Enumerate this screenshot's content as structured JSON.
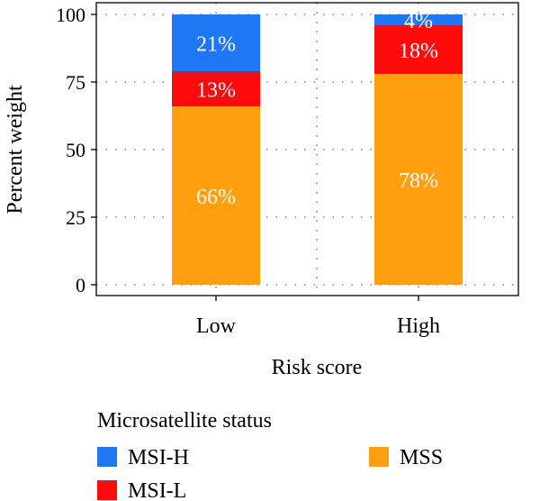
{
  "chart_data": {
    "type": "bar",
    "stacked": true,
    "categories": [
      "Low",
      "High"
    ],
    "xlabel": "Risk score",
    "ylabel": "Percent weight",
    "ylim": [
      0,
      100
    ],
    "yticks": [
      "0",
      "25",
      "50",
      "75",
      "100"
    ],
    "grid": "dotted",
    "series": [
      {
        "name": "MSS",
        "color": "#ff9f0f",
        "values": [
          66,
          78
        ],
        "labels": [
          "66%",
          "78%"
        ]
      },
      {
        "name": "MSI-L",
        "color": "#ff0a0a",
        "values": [
          13,
          18
        ],
        "labels": [
          "13%",
          "18%"
        ]
      },
      {
        "name": "MSI-H",
        "color": "#1f77f5",
        "values": [
          21,
          4
        ],
        "labels": [
          "21%",
          "4%"
        ]
      }
    ],
    "legend": {
      "title": "Microsatellite status",
      "placement": "bottom",
      "entries": [
        "MSI-H",
        "MSI-L",
        "MSS"
      ]
    }
  }
}
